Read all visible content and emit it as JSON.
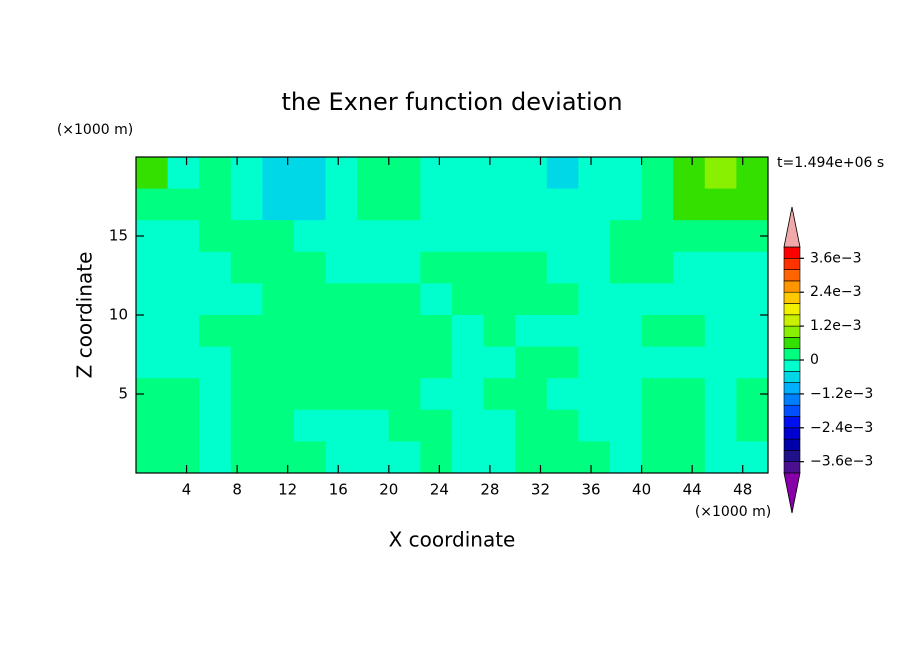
{
  "chart_data": {
    "type": "contour",
    "title": "the Exner function deviation",
    "x_unit": "(×1000 m)",
    "y_unit": "(×1000 m)",
    "xlabel": "X coordinate",
    "ylabel": "Z coordinate",
    "annotation": "t=1.494e+06 s",
    "xlim": [
      0,
      50
    ],
    "ylim": [
      0,
      20
    ],
    "xticks": [
      4,
      8,
      12,
      16,
      20,
      24,
      28,
      32,
      36,
      40,
      44,
      48
    ],
    "yticks": [
      5,
      10,
      15
    ],
    "x": [
      1.25,
      3.75,
      6.25,
      8.75,
      11.25,
      13.75,
      16.25,
      18.75,
      21.25,
      23.75,
      26.25,
      28.75,
      31.25,
      33.75,
      36.25,
      38.75,
      41.25,
      43.75,
      46.25,
      48.75
    ],
    "y": [
      19,
      17,
      15,
      13,
      11,
      9,
      7,
      5,
      3,
      1
    ],
    "z": [
      [
        0.0006,
        -0.0002,
        0.0002,
        -0.0002,
        -0.0006,
        -0.0006,
        -0.0002,
        0.0002,
        0.0002,
        -0.0002,
        -0.0002,
        -0.0002,
        -0.0002,
        -0.0006,
        -0.0002,
        -0.0002,
        0.0002,
        0.0006,
        0.001,
        0.0006
      ],
      [
        0.0002,
        0.0002,
        0.0002,
        -0.0002,
        -0.0006,
        -0.0006,
        -0.0002,
        0.0002,
        0.0002,
        -0.0002,
        -0.0002,
        -0.0002,
        -0.0002,
        -0.0002,
        -0.0002,
        -0.0002,
        0.0002,
        0.0006,
        0.0006,
        0.0006
      ],
      [
        -0.0002,
        -0.0002,
        0.0002,
        0.0002,
        0.0002,
        -0.0002,
        -0.0002,
        -0.0002,
        -0.0002,
        -0.0002,
        -0.0002,
        -0.0002,
        -0.0002,
        -0.0002,
        -0.0002,
        0.0002,
        0.0002,
        0.0002,
        0.0002,
        0.0002
      ],
      [
        -0.0002,
        -0.0002,
        -0.0002,
        0.0002,
        0.0002,
        0.0002,
        -0.0002,
        -0.0002,
        -0.0002,
        0.0002,
        0.0002,
        0.0002,
        0.0002,
        -0.0002,
        -0.0002,
        0.0002,
        0.0002,
        -0.0002,
        -0.0002,
        -0.0002
      ],
      [
        -0.0002,
        -0.0002,
        -0.0002,
        -0.0002,
        0.0002,
        0.0002,
        0.0002,
        0.0002,
        0.0002,
        -0.0002,
        0.0002,
        0.0002,
        0.0002,
        0.0002,
        -0.0002,
        -0.0002,
        -0.0002,
        -0.0002,
        -0.0002,
        -0.0002
      ],
      [
        -0.0002,
        -0.0002,
        0.0002,
        0.0002,
        0.0002,
        0.0002,
        0.0002,
        0.0002,
        0.0002,
        0.0002,
        -0.0002,
        0.0002,
        -0.0002,
        -0.0002,
        -0.0002,
        -0.0002,
        0.0002,
        0.0002,
        -0.0002,
        -0.0002
      ],
      [
        -0.0002,
        -0.0002,
        -0.0002,
        0.0002,
        0.0002,
        0.0002,
        0.0002,
        0.0002,
        0.0002,
        0.0002,
        -0.0002,
        -0.0002,
        0.0002,
        0.0002,
        -0.0002,
        -0.0002,
        -0.0002,
        -0.0002,
        -0.0002,
        -0.0002
      ],
      [
        0.0002,
        0.0002,
        -0.0002,
        0.0002,
        0.0002,
        0.0002,
        0.0002,
        0.0002,
        0.0002,
        -0.0002,
        -0.0002,
        0.0002,
        0.0002,
        -0.0002,
        -0.0002,
        -0.0002,
        0.0002,
        0.0002,
        -0.0002,
        0.0002
      ],
      [
        0.0002,
        0.0002,
        -0.0002,
        0.0002,
        0.0002,
        -0.0002,
        -0.0002,
        -0.0002,
        0.0002,
        0.0002,
        -0.0002,
        -0.0002,
        0.0002,
        0.0002,
        -0.0002,
        -0.0002,
        0.0002,
        0.0002,
        -0.0002,
        0.0002
      ],
      [
        0.0002,
        0.0002,
        -0.0002,
        0.0002,
        0.0002,
        0.0002,
        -0.0002,
        -0.0002,
        -0.0002,
        0.0002,
        -0.0002,
        -0.0002,
        0.0002,
        0.0002,
        0.0002,
        -0.0002,
        0.0002,
        0.0002,
        -0.0002,
        -0.0002
      ]
    ],
    "levels": [
      -0.004,
      -0.0036,
      -0.0032,
      -0.0028,
      -0.0024,
      -0.002,
      -0.0016,
      -0.0012,
      -0.0008,
      -0.0004,
      0,
      0.0004,
      0.0008,
      0.0012,
      0.0016,
      0.002,
      0.0024,
      0.0028,
      0.0032,
      0.0036,
      0.004
    ],
    "colors": [
      "#4a1090",
      "#20108a",
      "#0000a8",
      "#0000d0",
      "#0010f0",
      "#0050ff",
      "#0080ff",
      "#00b0ff",
      "#00d8e8",
      "#00ffcc",
      "#00ff80",
      "#33e000",
      "#88f000",
      "#c8f000",
      "#f0f000",
      "#ffc800",
      "#ff9600",
      "#ff6400",
      "#ff3200",
      "#ff0000"
    ],
    "under_color": "#8800aa",
    "over_color": "#f0a8a8",
    "cbar_ticks": [
      {
        "value": -0.0036,
        "label": "−3.6e−3"
      },
      {
        "value": -0.0024,
        "label": "−2.4e−3"
      },
      {
        "value": -0.0012,
        "label": "−1.2e−3"
      },
      0,
      {
        "value": 0.0012,
        "label": "1.2e−3"
      },
      {
        "value": 0.0024,
        "label": "2.4e−3"
      },
      {
        "value": 0.0036,
        "label": "3.6e−3"
      }
    ]
  }
}
